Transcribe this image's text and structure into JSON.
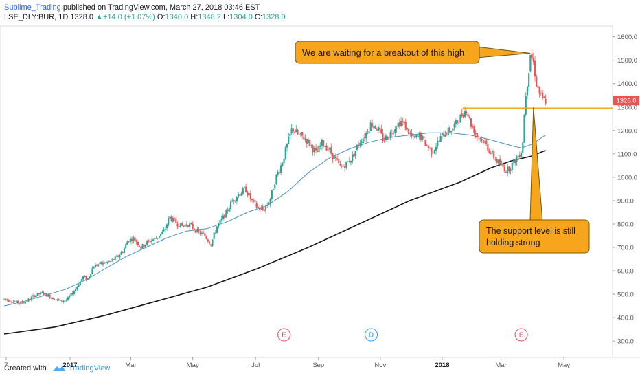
{
  "header": {
    "author": "Sublime_Trading",
    "published": "published on TradingView.com, March 27, 2018 03:46 EST",
    "symbol": "LSE_DLY:BUR, 1D",
    "last": "1328.0",
    "change": "+14.0 (+1.07%)",
    "o_label": "O:",
    "o_value": "1340.0",
    "h_label": "H:",
    "h_value": "1348.2",
    "l_label": "L:",
    "l_value": "1304.0",
    "c_label": "C:",
    "c_value": "1328.0"
  },
  "footer": {
    "created_with": "Created with",
    "brand": "TradingView"
  },
  "colors": {
    "up": "#26a69a",
    "down": "#ef5350",
    "ma_short": "#4a90c8",
    "ma_long": "#131722",
    "support": "#f5a623",
    "callout_fill": "#f7a51d",
    "callout_stroke": "#6b5a10",
    "price_badge": "#ef5350"
  },
  "chart_data": {
    "type": "candlestick",
    "symbol": "LSE_DLY:BUR",
    "timeframe": "1D",
    "ylim": [
      280,
      1640
    ],
    "y_ticks": [
      "1600.0",
      "1500.0",
      "1400.0",
      "1300.0",
      "1200.0",
      "1100.0",
      "1000.0",
      "900.0",
      "800.0",
      "700.0",
      "600.0",
      "500.0",
      "400.0",
      "300.0"
    ],
    "y_tick_values": [
      1600,
      1500,
      1400,
      1300,
      1200,
      1100,
      1000,
      900,
      800,
      700,
      600,
      500,
      400,
      300
    ],
    "x_ticks": [
      "7",
      "2017",
      "Mar",
      "May",
      "Jul",
      "Sep",
      "Nov",
      "2018",
      "Mar",
      "May"
    ],
    "x_tick_index": [
      2,
      65,
      125,
      186,
      248,
      310,
      371,
      432,
      490,
      552
    ],
    "x_index_range": [
      0,
      600
    ],
    "last_price": 1328.0,
    "last_price_label": "1328.0",
    "support_level": 1295,
    "price_path": [
      [
        0,
        480
      ],
      [
        8,
        470
      ],
      [
        15,
        462
      ],
      [
        22,
        470
      ],
      [
        30,
        495
      ],
      [
        38,
        505
      ],
      [
        45,
        490
      ],
      [
        55,
        470
      ],
      [
        62,
        475
      ],
      [
        70,
        520
      ],
      [
        78,
        575
      ],
      [
        82,
        560
      ],
      [
        88,
        620
      ],
      [
        95,
        630
      ],
      [
        105,
        640
      ],
      [
        112,
        660
      ],
      [
        118,
        690
      ],
      [
        122,
        730
      ],
      [
        128,
        740
      ],
      [
        135,
        700
      ],
      [
        142,
        725
      ],
      [
        150,
        740
      ],
      [
        158,
        770
      ],
      [
        163,
        830
      ],
      [
        168,
        810
      ],
      [
        175,
        790
      ],
      [
        182,
        800
      ],
      [
        190,
        770
      ],
      [
        198,
        750
      ],
      [
        204,
        715
      ],
      [
        210,
        790
      ],
      [
        218,
        840
      ],
      [
        225,
        900
      ],
      [
        232,
        930
      ],
      [
        238,
        950
      ],
      [
        244,
        900
      ],
      [
        250,
        870
      ],
      [
        256,
        860
      ],
      [
        262,
        900
      ],
      [
        268,
        1000
      ],
      [
        274,
        1060
      ],
      [
        280,
        1150
      ],
      [
        284,
        1210
      ],
      [
        290,
        1180
      ],
      [
        296,
        1170
      ],
      [
        302,
        1140
      ],
      [
        308,
        1100
      ],
      [
        314,
        1150
      ],
      [
        320,
        1120
      ],
      [
        326,
        1080
      ],
      [
        332,
        1040
      ],
      [
        338,
        1060
      ],
      [
        344,
        1090
      ],
      [
        350,
        1150
      ],
      [
        356,
        1180
      ],
      [
        362,
        1230
      ],
      [
        368,
        1210
      ],
      [
        374,
        1160
      ],
      [
        380,
        1180
      ],
      [
        386,
        1220
      ],
      [
        392,
        1240
      ],
      [
        398,
        1200
      ],
      [
        404,
        1160
      ],
      [
        410,
        1180
      ],
      [
        416,
        1140
      ],
      [
        422,
        1110
      ],
      [
        428,
        1150
      ],
      [
        434,
        1190
      ],
      [
        440,
        1200
      ],
      [
        446,
        1230
      ],
      [
        452,
        1270
      ],
      [
        456,
        1290
      ],
      [
        460,
        1230
      ],
      [
        466,
        1180
      ],
      [
        472,
        1160
      ],
      [
        478,
        1120
      ],
      [
        484,
        1080
      ],
      [
        490,
        1050
      ],
      [
        496,
        1030
      ],
      [
        502,
        1060
      ],
      [
        508,
        1100
      ],
      [
        511,
        1120
      ],
      [
        514,
        1340
      ],
      [
        517,
        1440
      ],
      [
        519,
        1530
      ],
      [
        522,
        1490
      ],
      [
        525,
        1400
      ],
      [
        528,
        1360
      ],
      [
        531,
        1330
      ],
      [
        534,
        1328
      ]
    ],
    "ma_short_path": [
      [
        0,
        450
      ],
      [
        20,
        470
      ],
      [
        40,
        495
      ],
      [
        60,
        520
      ],
      [
        80,
        560
      ],
      [
        100,
        610
      ],
      [
        120,
        660
      ],
      [
        140,
        700
      ],
      [
        160,
        740
      ],
      [
        180,
        770
      ],
      [
        200,
        780
      ],
      [
        220,
        810
      ],
      [
        240,
        850
      ],
      [
        260,
        880
      ],
      [
        280,
        940
      ],
      [
        300,
        1020
      ],
      [
        320,
        1080
      ],
      [
        340,
        1120
      ],
      [
        360,
        1150
      ],
      [
        380,
        1170
      ],
      [
        400,
        1180
      ],
      [
        420,
        1190
      ],
      [
        440,
        1190
      ],
      [
        460,
        1180
      ],
      [
        480,
        1160
      ],
      [
        500,
        1135
      ],
      [
        510,
        1125
      ],
      [
        520,
        1140
      ],
      [
        534,
        1180
      ]
    ],
    "ma_long_path": [
      [
        0,
        330
      ],
      [
        50,
        360
      ],
      [
        100,
        410
      ],
      [
        150,
        470
      ],
      [
        200,
        530
      ],
      [
        250,
        610
      ],
      [
        300,
        700
      ],
      [
        350,
        800
      ],
      [
        400,
        900
      ],
      [
        450,
        980
      ],
      [
        480,
        1040
      ],
      [
        500,
        1070
      ],
      [
        520,
        1090
      ],
      [
        534,
        1115
      ]
    ],
    "events": [
      {
        "label": "E",
        "index": 276,
        "color": "#e05060"
      },
      {
        "label": "D",
        "index": 362,
        "color": "#2e9af0"
      },
      {
        "label": "E",
        "index": 510,
        "color": "#e05060"
      }
    ],
    "annotations": [
      {
        "name": "breakout-callout",
        "text": [
          "We are waiting for a breakout of this high"
        ],
        "target_index": 519,
        "target_price": 1530
      },
      {
        "name": "support-callout",
        "text": [
          "The support level is still",
          "holding strong"
        ],
        "target_index": 522,
        "target_price": 1300
      }
    ]
  }
}
